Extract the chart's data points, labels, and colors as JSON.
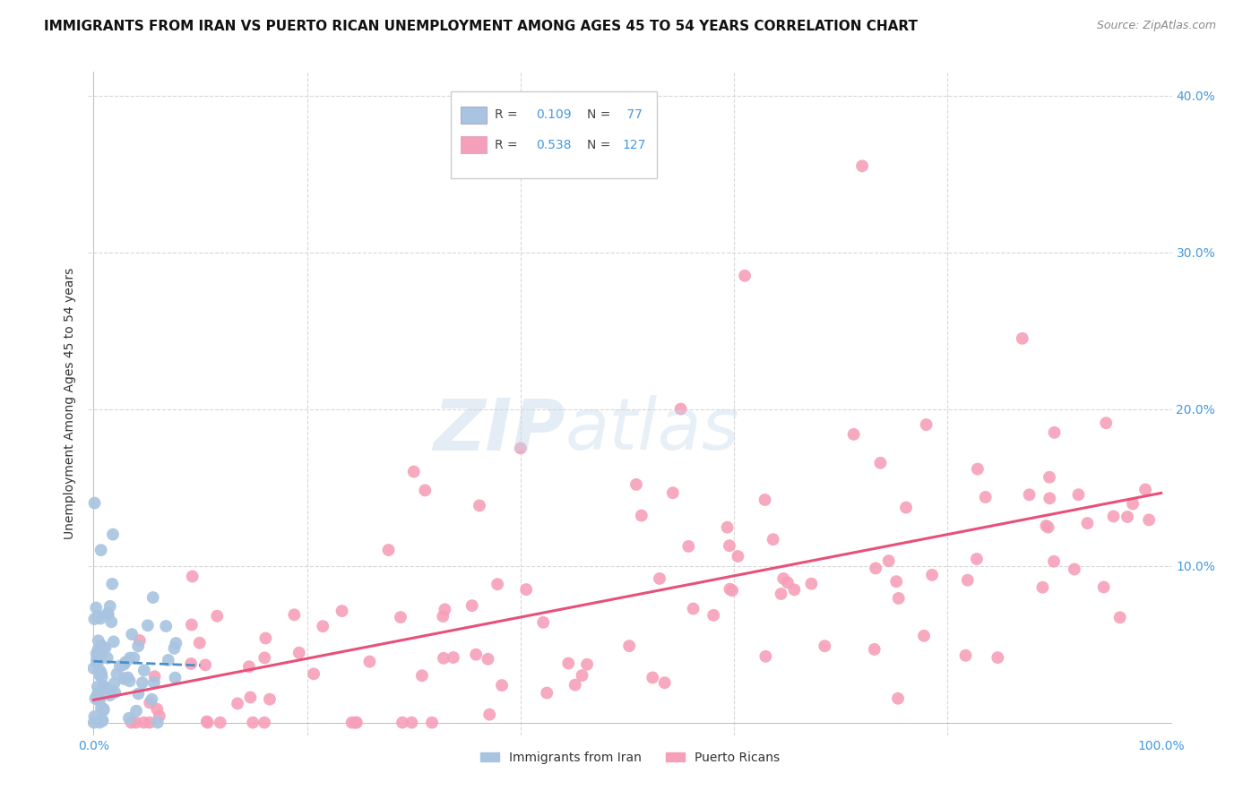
{
  "title": "IMMIGRANTS FROM IRAN VS PUERTO RICAN UNEMPLOYMENT AMONG AGES 45 TO 54 YEARS CORRELATION CHART",
  "source": "Source: ZipAtlas.com",
  "ylabel": "Unemployment Among Ages 45 to 54 years",
  "iran_R": 0.109,
  "iran_N": 77,
  "pr_R": 0.538,
  "pr_N": 127,
  "iran_color": "#a8c4e0",
  "iran_line_color": "#4a90c8",
  "pr_color": "#f5a0b8",
  "pr_line_color": "#e8507a",
  "background_color": "#ffffff",
  "grid_color": "#d8d8d8",
  "title_fontsize": 11,
  "source_fontsize": 9,
  "axis_tick_color": "#4499dd",
  "right_tick_color": "#4499dd"
}
